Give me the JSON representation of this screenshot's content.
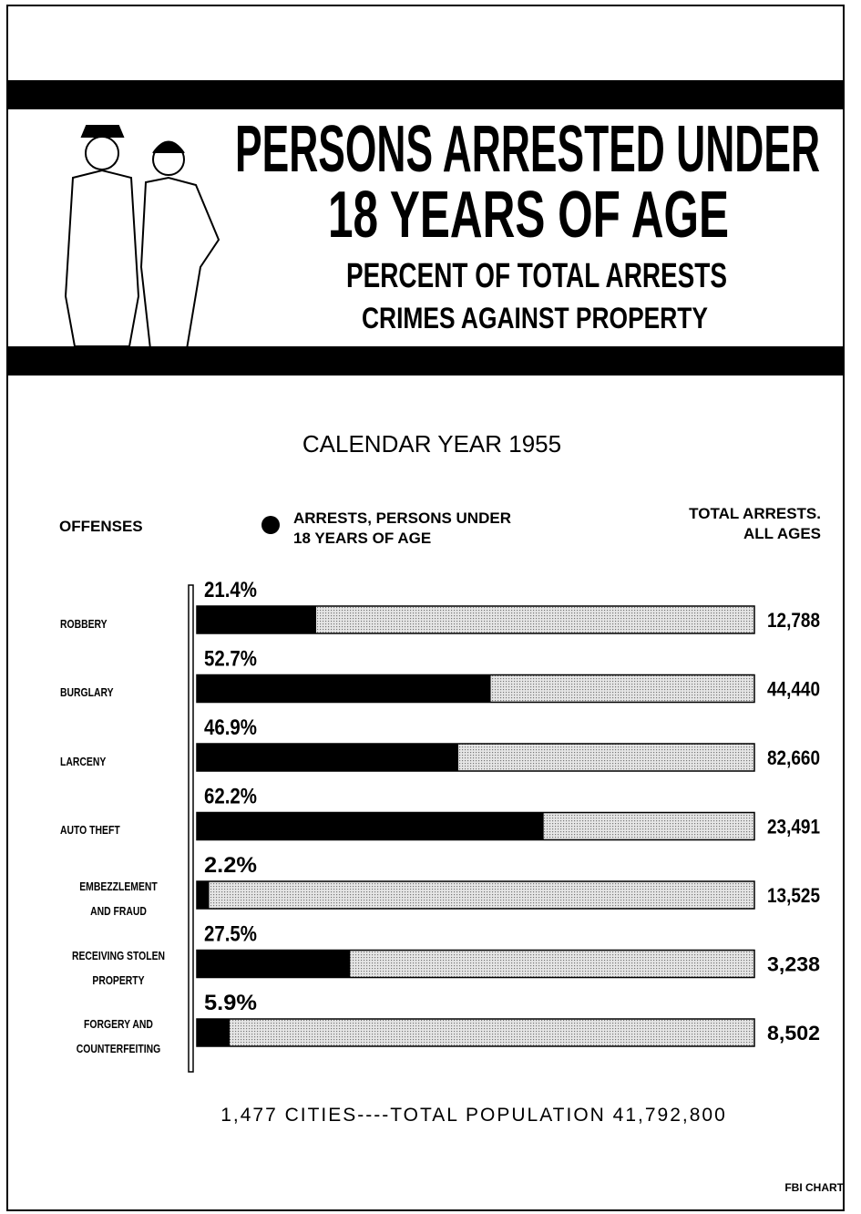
{
  "chart_data": {
    "type": "bar",
    "title_lines": [
      "PERSONS ARRESTED UNDER",
      "18 YEARS OF AGE"
    ],
    "subtitle": "PERCENT OF TOTAL ARRESTS",
    "subtitle2": "CRIMES AGAINST PROPERTY",
    "period": "CALENDAR YEAR 1955",
    "category_header": "OFFENSES",
    "categories": [
      "ROBBERY",
      "BURGLARY",
      "LARCENY",
      "AUTO THEFT",
      "EMBEZZLEMENT\nAND FRAUD",
      "RECEIVING STOLEN\nPROPERTY",
      "FORGERY AND\nCOUNTERFEITING"
    ],
    "xlim": [
      0,
      100
    ],
    "series": [
      {
        "name": "ARRESTS, PERSONS UNDER\n18 YEARS OF AGE",
        "color": "#000000",
        "values": [
          21.4,
          52.7,
          46.9,
          62.2,
          2.2,
          27.5,
          5.9
        ],
        "value_labels": [
          "21.4%",
          "52.7%",
          "46.9%",
          "62.2%",
          "2.2%",
          "27.5%",
          "5.9%"
        ]
      }
    ],
    "totals": {
      "name": "TOTAL ARRESTS.\nALL AGES",
      "color": "#c8c8c8",
      "values": [
        12788,
        44440,
        82660,
        23491,
        13525,
        3238,
        8502
      ],
      "value_labels": [
        "12,788",
        "44,440",
        "82,660",
        "23,491",
        "13,525",
        "3,238",
        "8,502"
      ]
    },
    "footnote": "1,477 CITIES----TOTAL POPULATION 41,792,800",
    "source": "FBI CHART"
  }
}
